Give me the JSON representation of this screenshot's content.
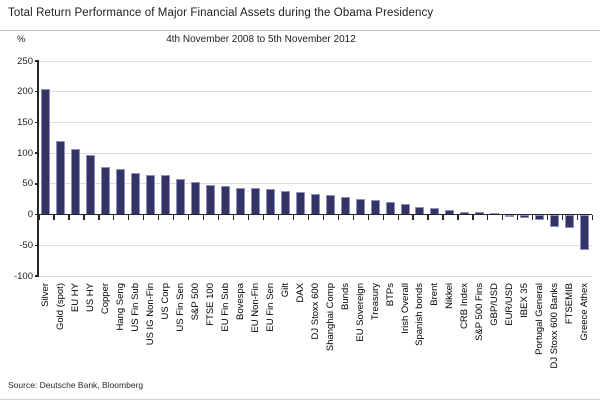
{
  "header": {
    "title": "Total Return Performance of Major Financial Assets during the Obama Presidency",
    "subtitle": "4th November 2008 to 5th November 2012",
    "y_unit": "%"
  },
  "source_text": "Source: Deutsche Bank, Bloomberg",
  "chart_data": {
    "type": "bar",
    "title": "Total Return Performance of Major Financial Assets during the Obama Presidency",
    "subtitle": "4th November 2008 to 5th November 2012",
    "xlabel": "",
    "ylabel": "%",
    "ylim": [
      -100,
      250
    ],
    "ytick_step": 50,
    "grid": true,
    "legend_position": "none",
    "bar_color": "#333366",
    "bar_border_color": "#9090c0",
    "categories": [
      "Silver",
      "Gold (spot)",
      "EU HY",
      "US HY",
      "Copper",
      "Hang Seng",
      "US Fin Sub",
      "US IG Non-Fin",
      "US Corp",
      "US Fin Sen",
      "S&P 500",
      "FTSE 100",
      "EU Fin Sub",
      "Bovespa",
      "EU Non-Fin",
      "EU Fin Sen",
      "Gilt",
      "DAX",
      "DJ Stoxx 600",
      "Shanghai Comp",
      "Bunds",
      "EU Sovereign",
      "Treasury",
      "BTPs",
      "Irish Overall",
      "Spanish bonds",
      "Brent",
      "Nikkei",
      "CRB Index",
      "S&P 500 Fins",
      "GBP/USD",
      "EUR/USD",
      "IBEX 35",
      "Portugal General",
      "DJ Stoxx 600 Banks",
      "FTSEMIB",
      "Greece Athex"
    ],
    "values": [
      205,
      120,
      107,
      97,
      77,
      75,
      68,
      65,
      64,
      58,
      53,
      48,
      47,
      44,
      43,
      41,
      39,
      37,
      34,
      32,
      29,
      25,
      23,
      21,
      18,
      13,
      11,
      7,
      4.5,
      4,
      2,
      -2,
      -6,
      -9,
      -20,
      -22,
      -58
    ]
  }
}
